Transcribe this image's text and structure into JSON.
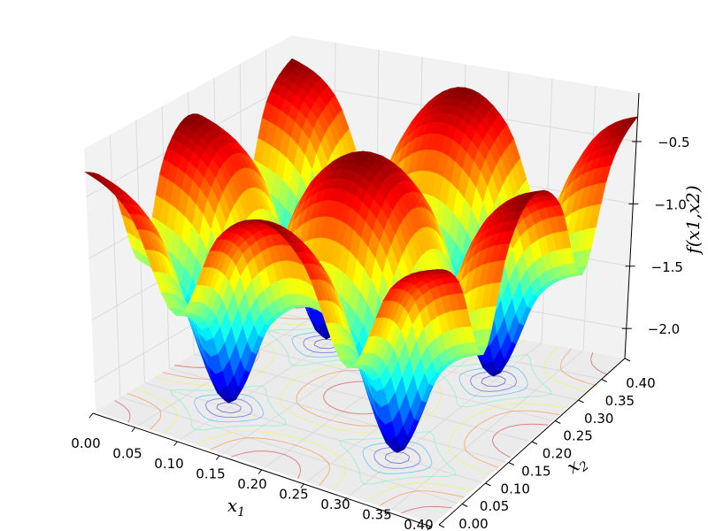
{
  "chart_data": {
    "type": "surface",
    "title": "",
    "xlabel": "x1",
    "ylabel": "x2",
    "zlabel": "f(x1,x2)",
    "xlim": [
      0.0,
      0.4
    ],
    "ylim": [
      0.0,
      0.4
    ],
    "zlim": [
      -2.24,
      -0.11
    ],
    "x_ticks": [
      "0.00",
      "0.05",
      "0.10",
      "0.15",
      "0.20",
      "0.25",
      "0.30",
      "0.35",
      "0.40"
    ],
    "y_ticks": [
      "0.00",
      "0.05",
      "0.10",
      "0.15",
      "0.20",
      "0.25",
      "0.30",
      "0.35",
      "0.40"
    ],
    "z_ticks": [
      "−2.0",
      "−1.5",
      "−1.0",
      "−0.5"
    ],
    "z_tick_values": [
      -2.0,
      -1.5,
      -1.0,
      -0.5
    ],
    "colormap": "jet",
    "grid": true,
    "floor_contours": true,
    "x": [
      0.0,
      0.05,
      0.1,
      0.15,
      0.2,
      0.25,
      0.3,
      0.35,
      0.4
    ],
    "y": [
      0.0,
      0.05,
      0.1,
      0.15,
      0.2,
      0.25,
      0.3,
      0.35,
      0.4
    ],
    "z": [
      [
        -0.3,
        -0.54,
        -1.25,
        -0.54,
        -0.3,
        -0.54,
        -1.25,
        -0.54,
        -0.3
      ],
      [
        -0.54,
        -0.78,
        -1.49,
        -0.78,
        -0.54,
        -0.78,
        -1.49,
        -0.78,
        -0.54
      ],
      [
        -1.25,
        -1.49,
        -2.2,
        -1.49,
        -1.25,
        -1.49,
        -2.2,
        -1.49,
        -1.25
      ],
      [
        -0.54,
        -0.78,
        -1.49,
        -0.78,
        -0.54,
        -0.78,
        -1.49,
        -0.78,
        -0.54
      ],
      [
        -0.3,
        -0.54,
        -1.25,
        -0.54,
        -0.3,
        -0.54,
        -1.25,
        -0.54,
        -0.3
      ],
      [
        -0.54,
        -0.78,
        -1.49,
        -0.78,
        -0.54,
        -0.78,
        -1.49,
        -0.78,
        -0.54
      ],
      [
        -1.25,
        -1.49,
        -2.2,
        -1.49,
        -1.25,
        -1.49,
        -2.2,
        -1.49,
        -1.25
      ],
      [
        -0.54,
        -0.78,
        -1.49,
        -0.78,
        -0.54,
        -0.78,
        -1.49,
        -0.78,
        -0.54
      ],
      [
        -0.3,
        -0.54,
        -1.25,
        -0.54,
        -0.3,
        -0.54,
        -1.25,
        -0.54,
        -0.3
      ]
    ],
    "colors": {
      "pane_floor": "#ebebeb",
      "pane_wall": "#f2f2f2",
      "grid": "#dcdcdc",
      "axis": "#000000"
    }
  }
}
